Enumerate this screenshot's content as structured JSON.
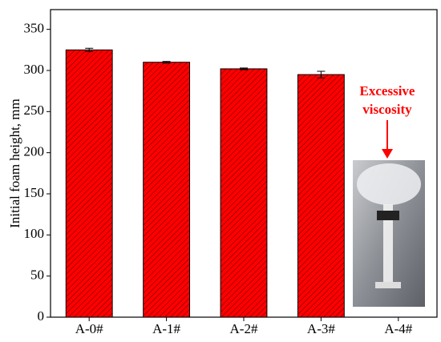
{
  "chart_data": {
    "type": "bar",
    "y_label": "Initial foam height, mm",
    "categories": [
      "A-0#",
      "A-1#",
      "A-2#",
      "A-3#",
      "A-4#"
    ],
    "values": [
      325,
      310,
      302,
      295,
      null
    ],
    "errors": [
      2,
      1,
      1,
      4,
      null
    ],
    "color": "#ff0000",
    "ylim": [
      0,
      374
    ],
    "yticks": [
      0,
      50,
      100,
      150,
      200,
      250,
      300,
      350
    ],
    "annotation": [
      "Excessive",
      "viscosity"
    ]
  }
}
